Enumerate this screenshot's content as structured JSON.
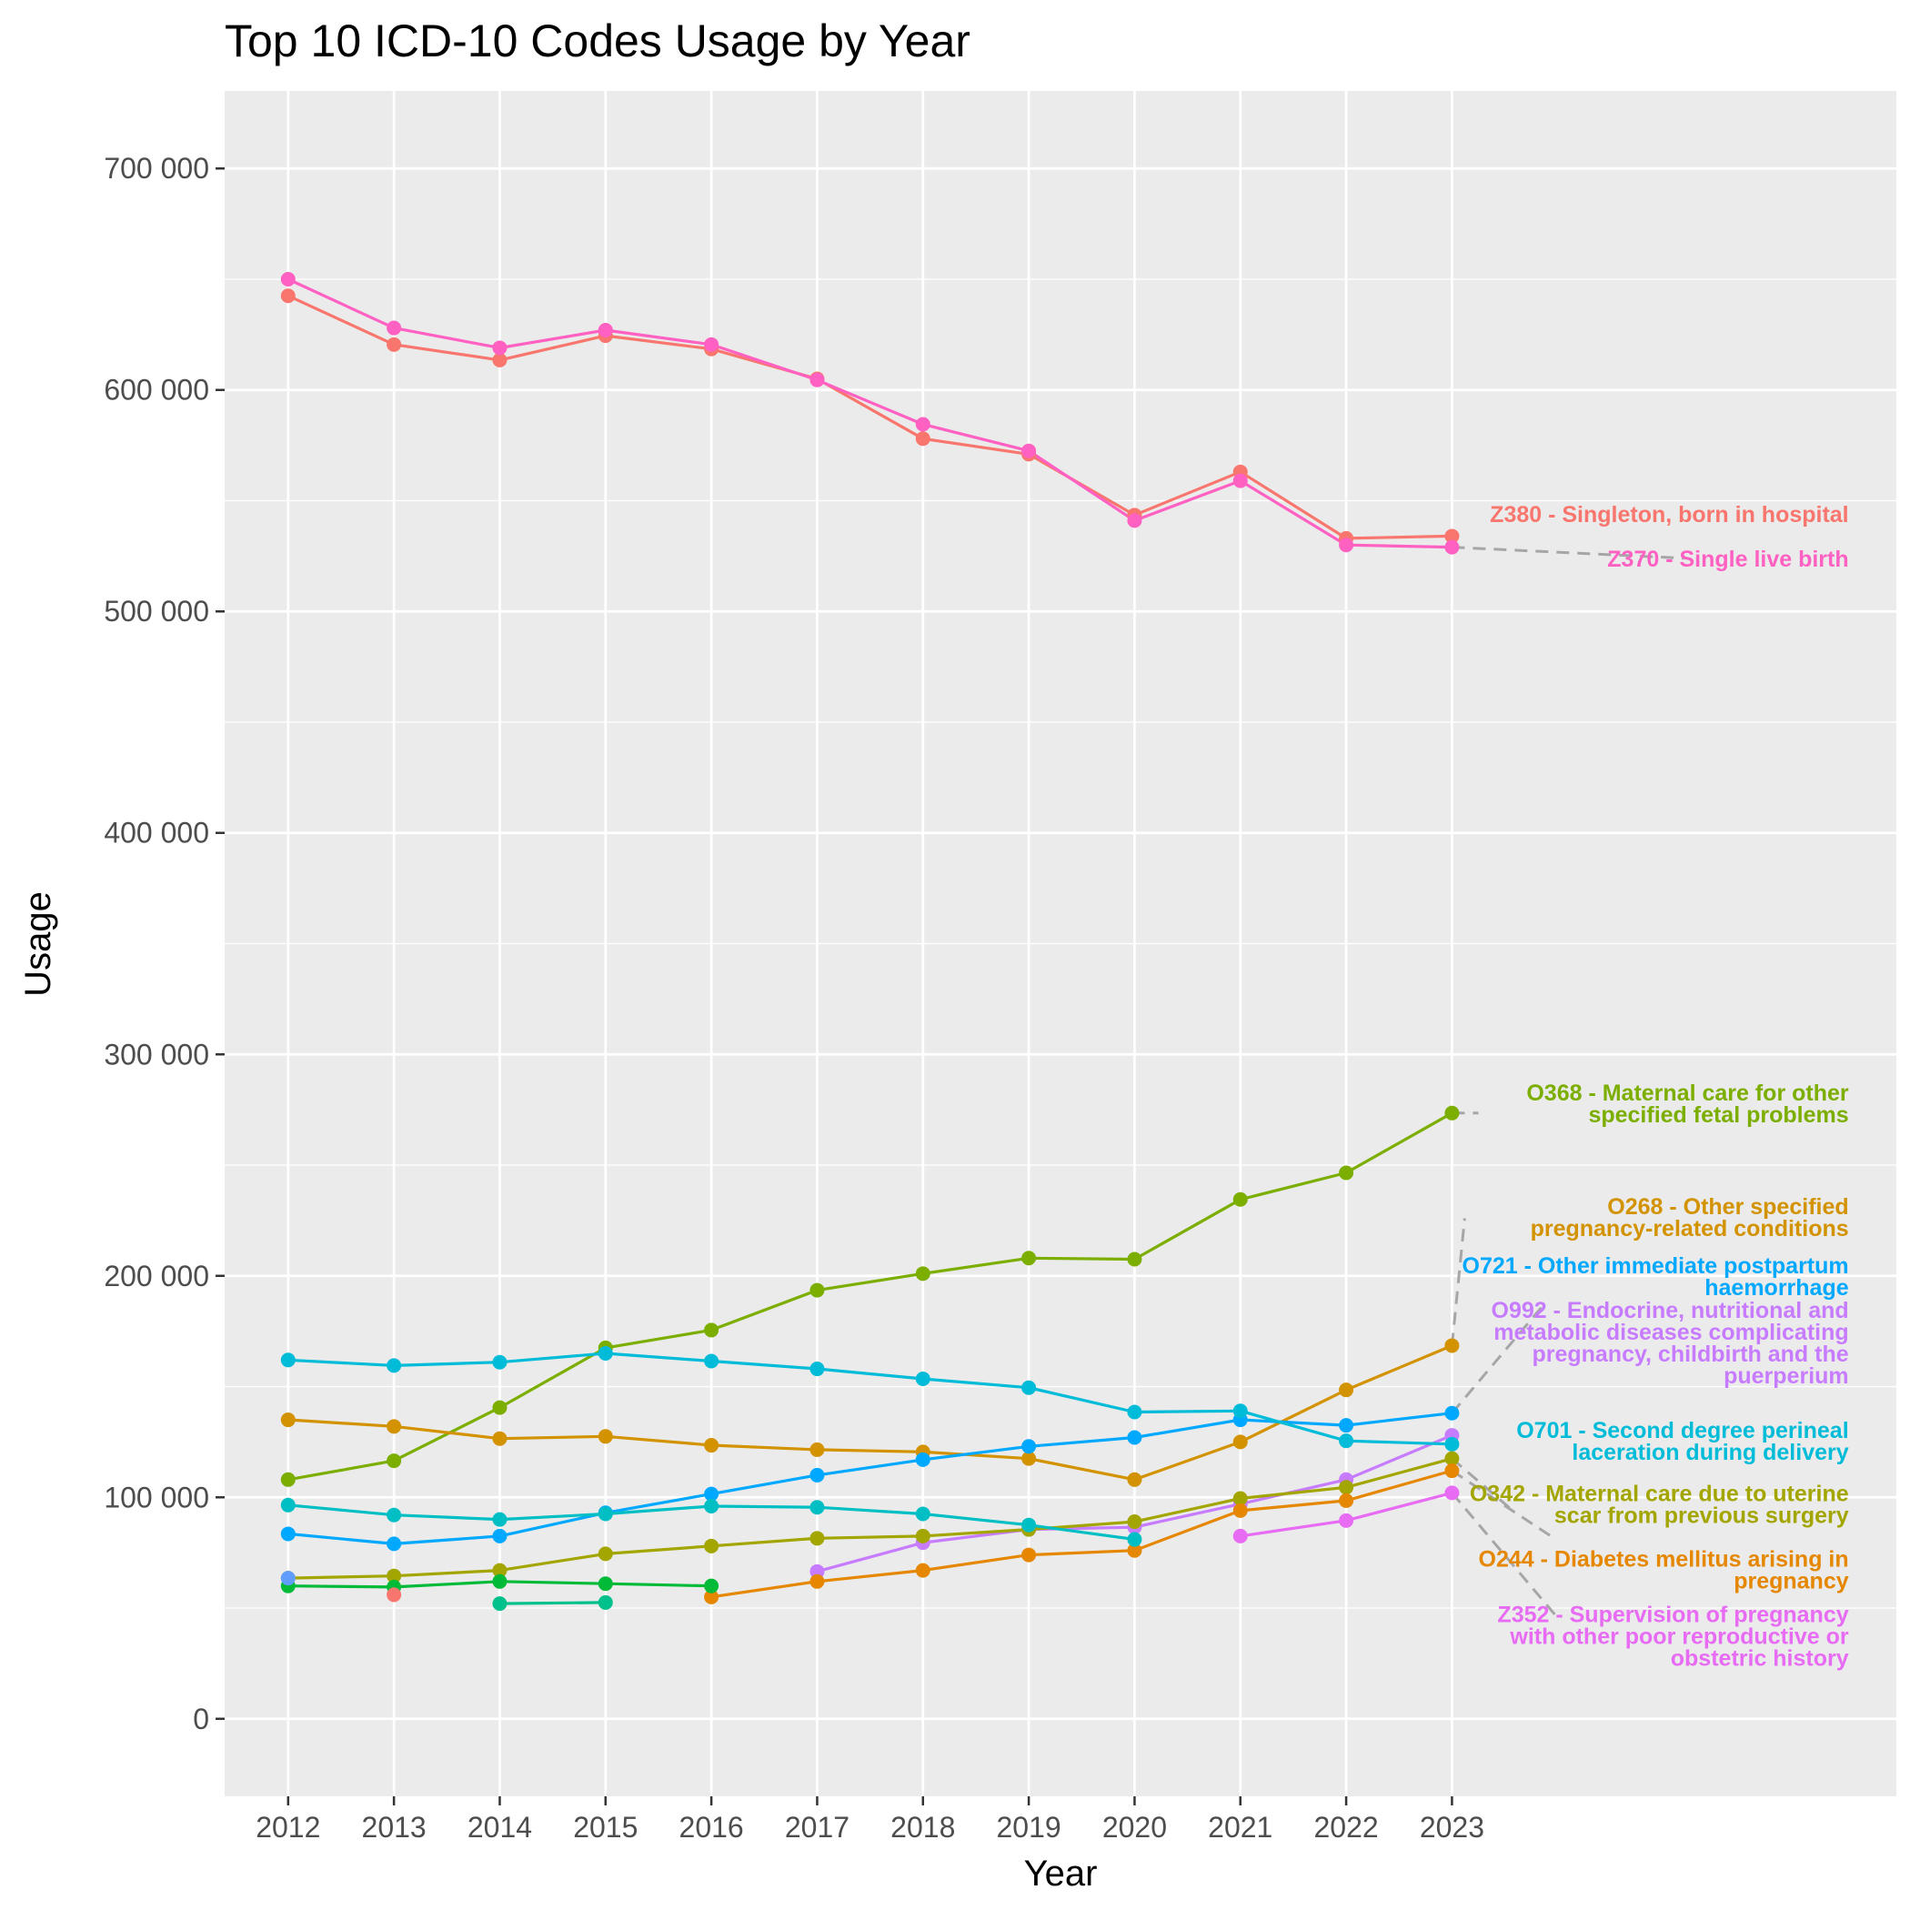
{
  "chart_data": {
    "type": "line",
    "title": "Top 10 ICD-10 Codes Usage by Year",
    "xlabel": "Year",
    "ylabel": "Usage",
    "x": [
      2012,
      2013,
      2014,
      2015,
      2016,
      2017,
      2018,
      2019,
      2020,
      2021,
      2022,
      2023
    ],
    "xlim": [
      2011.4,
      2027.2
    ],
    "ylim": [
      -35000,
      735000
    ],
    "y_ticks": [
      0,
      100000,
      200000,
      300000,
      400000,
      500000,
      600000,
      700000
    ],
    "y_tick_labels": [
      "0",
      "100 000",
      "200 000",
      "300 000",
      "400 000",
      "500 000",
      "600 000",
      "700 000"
    ],
    "grid": true,
    "legend": "none",
    "series": [
      {
        "name": "Z380 - Singleton, born in hospital",
        "color": "#F8766D",
        "values": [
          642500,
          620500,
          613500,
          624500,
          618500,
          605000,
          578000,
          571000,
          543500,
          563000,
          533000,
          534000
        ]
      },
      {
        "name": "Z370 - Single live birth",
        "color": "#FF61C3",
        "values": [
          650000,
          628000,
          619000,
          627000,
          620500,
          604500,
          584500,
          572500,
          541000,
          559000,
          530000,
          529000
        ]
      },
      {
        "name": "O368 - Maternal care for other specified fetal problems",
        "color": "#7CAE00",
        "values": [
          108000,
          116500,
          140500,
          167500,
          175500,
          193500,
          201000,
          208000,
          207500,
          234500,
          246500,
          273500
        ]
      },
      {
        "name": "O268 - Other specified pregnancy-related conditions",
        "color": "#D39200",
        "values": [
          135000,
          132000,
          126500,
          127500,
          123500,
          121500,
          120500,
          117500,
          108000,
          125000,
          148500,
          168500
        ]
      },
      {
        "name": "O721 - Other immediate postpartum haemorrhage",
        "color": "#00A9FF",
        "values": [
          83500,
          79000,
          82500,
          93000,
          101500,
          110000,
          117000,
          123000,
          127000,
          135000,
          132500,
          138000
        ]
      },
      {
        "name": "O992 - Endocrine, nutritional and metabolic diseases complicating pregnancy, childbirth and the puerperium",
        "color": "#C77CFF",
        "values": [
          null,
          null,
          null,
          null,
          null,
          66500,
          79500,
          85500,
          86500,
          97000,
          108000,
          128000
        ]
      },
      {
        "name": "O701 - Second degree perineal laceration during delivery",
        "color": "#00BCD8",
        "values": [
          162000,
          159500,
          161000,
          165000,
          161500,
          158000,
          153500,
          149500,
          138500,
          139000,
          125500,
          124000
        ]
      },
      {
        "name": "O342 - Maternal care due to uterine scar from previous surgery",
        "color": "#A3A500",
        "values": [
          63500,
          64500,
          67000,
          74500,
          78000,
          81500,
          82500,
          85500,
          89000,
          99500,
          104500,
          117500
        ]
      },
      {
        "name": "O244 - Diabetes mellitus arising in pregnancy",
        "color": "#E58700",
        "values": [
          null,
          null,
          null,
          null,
          55000,
          62000,
          67000,
          74000,
          76000,
          94000,
          98500,
          112000
        ]
      },
      {
        "name": "Z352 - Supervision of pregnancy with other poor reproductive or obstetric history",
        "color": "#E76BF3",
        "values": [
          null,
          null,
          null,
          null,
          null,
          null,
          null,
          null,
          null,
          82500,
          89500,
          102000
        ]
      },
      {
        "color": "#00BFC4",
        "values": [
          96500,
          92000,
          90000,
          92500,
          96000,
          95500,
          92500,
          87500,
          81000,
          null,
          null,
          null
        ]
      },
      {
        "color": "#00BA38",
        "values": [
          60000,
          59500,
          62000,
          61000,
          60000,
          null,
          null,
          null,
          null,
          null,
          null,
          null
        ]
      },
      {
        "color": "#00C08B",
        "values": [
          null,
          null,
          52000,
          52500,
          null,
          null,
          null,
          null,
          null,
          null,
          null,
          null
        ]
      },
      {
        "color": "#F8766D",
        "values": [
          null,
          56000,
          null,
          null,
          null,
          null,
          null,
          null,
          null,
          null,
          null,
          null
        ]
      },
      {
        "color": "#619CFF",
        "values": [
          63500,
          null,
          null,
          null,
          null,
          null,
          null,
          null,
          null,
          null,
          null,
          null
        ]
      }
    ],
    "annotations": [
      {
        "series": 0,
        "lines": [
          "Z380 - Singleton, born in hospital"
        ],
        "label_x": 2026.75,
        "label_y": 544000,
        "align": "end",
        "leader": false
      },
      {
        "series": 1,
        "lines": [
          "Z370 - Single live birth"
        ],
        "label_x": 2026.75,
        "label_y": 524000,
        "align": "end",
        "leader": true,
        "leader_to": [
          2025.2,
          524000
        ]
      },
      {
        "series": 2,
        "lines": [
          "O368 - Maternal care for other",
          "specified fetal problems"
        ],
        "label_x": 2026.75,
        "label_y": 278000,
        "align": "end",
        "leader": true,
        "leader_to": [
          2023.25,
          273500
        ]
      },
      {
        "series": 3,
        "lines": [
          "O268 - Other specified",
          "pregnancy-related conditions"
        ],
        "label_x": 2026.75,
        "label_y": 226500,
        "align": "end",
        "leader": true,
        "leader_to": [
          2023.12,
          226000
        ]
      },
      {
        "series": 4,
        "lines": [
          "O721 - Other immediate postpartum",
          "haemorrhage"
        ],
        "label_x": 2026.75,
        "label_y": 200000,
        "align": "end",
        "leader": true,
        "leader_to": [
          2023.85,
          186000
        ]
      },
      {
        "series": 5,
        "lines": [
          "O992 - Endocrine, nutritional and",
          "metabolic diseases complicating",
          "pregnancy, childbirth and the",
          "puerperium"
        ],
        "label_x": 2026.75,
        "label_y": 170000,
        "align": "end",
        "leader": false
      },
      {
        "series": 6,
        "lines": [
          "O701 - Second degree perineal",
          "laceration during delivery"
        ],
        "label_x": 2026.75,
        "label_y": 125500,
        "align": "end",
        "leader": false
      },
      {
        "series": 7,
        "lines": [
          "O342 - Maternal care due to uterine",
          "scar from previous surgery"
        ],
        "label_x": 2026.75,
        "label_y": 97000,
        "align": "end",
        "leader": true,
        "leader_to": [
          2023.55,
          95000
        ]
      },
      {
        "series": 8,
        "lines": [
          "O244 - Diabetes mellitus arising in",
          "pregnancy"
        ],
        "label_x": 2026.75,
        "label_y": 67500,
        "align": "end",
        "leader": true,
        "leader_to": [
          2023.95,
          82000
        ]
      },
      {
        "series": 9,
        "lines": [
          "Z352 - Supervision of pregnancy",
          "with other poor reproductive or",
          "obstetric history"
        ],
        "label_x": 2026.75,
        "label_y": 37500,
        "align": "end",
        "leader": true,
        "leader_to": [
          2024.0,
          45500
        ]
      }
    ]
  }
}
